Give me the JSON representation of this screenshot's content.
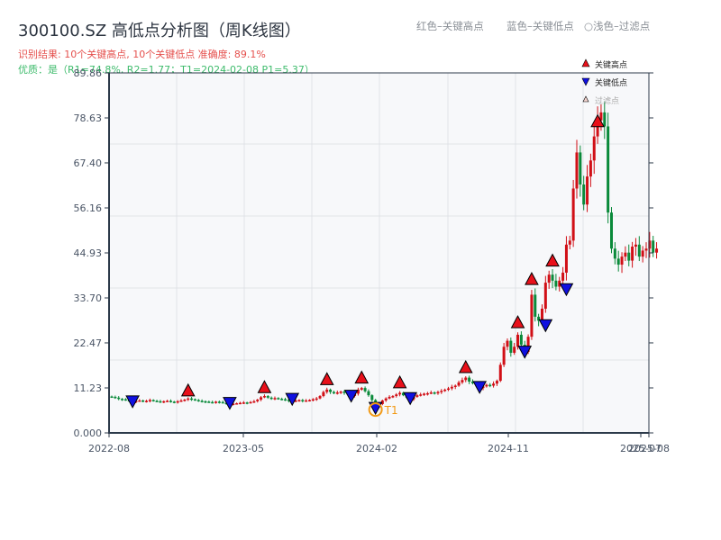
{
  "header": {
    "title": "300100.SZ 高低点分析图（周K线图）",
    "result_line": "识别结果: 10个关键高点, 10个关键低点   准确度: 89.1%",
    "quality_line": "优质：是（R1=74.8%, R2=1.77；T1=2024-02-08 P1=5.37）"
  },
  "top_legend": {
    "red": "红色–关键高点",
    "blue": "蓝色–关键低点",
    "light": "○浅色–过滤点"
  },
  "colors": {
    "up": "#d10f16",
    "down": "#0a8a3a",
    "high_marker": "#e8101a",
    "low_marker": "#1010e0",
    "filtered_marker": "#f6d5d0",
    "t1_ring": "#f29a16",
    "axis": "#2c3a4a",
    "grid": "#e0e3e8",
    "plot_bg": "#f7f8fa"
  },
  "chart_data": {
    "type": "candlestick",
    "title": "300100.SZ 高低点分析图（周K线图）",
    "xlabel": "",
    "ylabel": "",
    "ylim": [
      0,
      89.86
    ],
    "y_ticks": [
      0.0,
      11.23,
      22.47,
      33.7,
      44.93,
      56.16,
      67.4,
      78.63,
      89.86
    ],
    "y_tick_labels": [
      "0.000",
      "11.23",
      "22.47",
      "33.70",
      "44.93",
      "56.16",
      "67.40",
      "78.63",
      "89.86"
    ],
    "x_ticks": [
      "2022-08",
      "2023-05",
      "2024-02",
      "2024-11",
      "2025-07",
      "2025-08"
    ],
    "grid": true,
    "legend": {
      "position": "upper-right",
      "entries": [
        "关键高点",
        "关键低点",
        "过滤点"
      ]
    },
    "annotation": {
      "label": "T1",
      "date": "2024-02-08",
      "price": 5.37
    },
    "key_highs": [
      {
        "week": 22,
        "price": 8.8
      },
      {
        "week": 44,
        "price": 9.6
      },
      {
        "week": 62,
        "price": 11.6
      },
      {
        "week": 72,
        "price": 12.0
      },
      {
        "week": 83,
        "price": 10.8
      },
      {
        "week": 102,
        "price": 14.6
      },
      {
        "week": 117,
        "price": 25.8
      },
      {
        "week": 121,
        "price": 36.6
      },
      {
        "week": 127,
        "price": 41.2
      },
      {
        "week": 140,
        "price": 76.0
      }
    ],
    "key_lows": [
      {
        "week": 6,
        "price": 7.0
      },
      {
        "week": 34,
        "price": 6.6
      },
      {
        "week": 52,
        "price": 7.6
      },
      {
        "week": 69,
        "price": 8.4
      },
      {
        "week": 76,
        "price": 5.37
      },
      {
        "week": 86,
        "price": 7.8
      },
      {
        "week": 106,
        "price": 10.6
      },
      {
        "week": 119,
        "price": 19.4
      },
      {
        "week": 125,
        "price": 26.0
      },
      {
        "week": 131,
        "price": 35.0
      }
    ],
    "closes": [
      9.0,
      8.8,
      8.5,
      8.4,
      8.2,
      8.0,
      7.8,
      8.0,
      8.1,
      7.9,
      8.0,
      8.2,
      8.0,
      7.9,
      7.8,
      7.9,
      8.0,
      7.8,
      7.7,
      7.9,
      8.1,
      8.3,
      8.6,
      8.4,
      8.2,
      8.0,
      7.9,
      7.8,
      7.7,
      7.6,
      7.8,
      7.7,
      7.5,
      7.3,
      7.2,
      7.3,
      7.4,
      7.5,
      7.6,
      7.5,
      7.7,
      7.9,
      8.3,
      8.9,
      9.2,
      8.8,
      8.6,
      8.7,
      8.5,
      8.4,
      8.3,
      8.0,
      7.9,
      8.1,
      8.2,
      8.0,
      8.1,
      8.2,
      8.4,
      8.6,
      9.2,
      10.2,
      10.8,
      10.2,
      9.9,
      10.1,
      10.3,
      10.0,
      9.6,
      9.2,
      9.8,
      10.8,
      11.2,
      10.4,
      9.4,
      8.2,
      6.4,
      7.2,
      8.1,
      8.6,
      9.0,
      9.2,
      9.6,
      10.0,
      9.4,
      8.8,
      8.4,
      9.0,
      9.4,
      9.6,
      9.8,
      9.9,
      10.1,
      9.9,
      10.2,
      10.5,
      10.8,
      11.1,
      11.5,
      11.8,
      12.6,
      13.2,
      13.8,
      12.8,
      12.4,
      12.0,
      11.2,
      11.6,
      12.0,
      11.8,
      12.3,
      13.0,
      17.0,
      21.5,
      23.0,
      20.0,
      21.5,
      24.5,
      22.0,
      20.2,
      24.0,
      34.5,
      29.0,
      28.0,
      31.0,
      37.5,
      39.5,
      38.0,
      36.5,
      38.0,
      40.0,
      47.0,
      48.0,
      61.0,
      70.0,
      62.0,
      57.0,
      64.0,
      68.0,
      74.0,
      78.0,
      80.0,
      76.5,
      55.0,
      46.0,
      43.5,
      42.0,
      44.0,
      45.0,
      43.0,
      46.5,
      47.0,
      44.0,
      45.5,
      46.0,
      48.0,
      45.0,
      46.0
    ],
    "num_weeks": 155
  }
}
